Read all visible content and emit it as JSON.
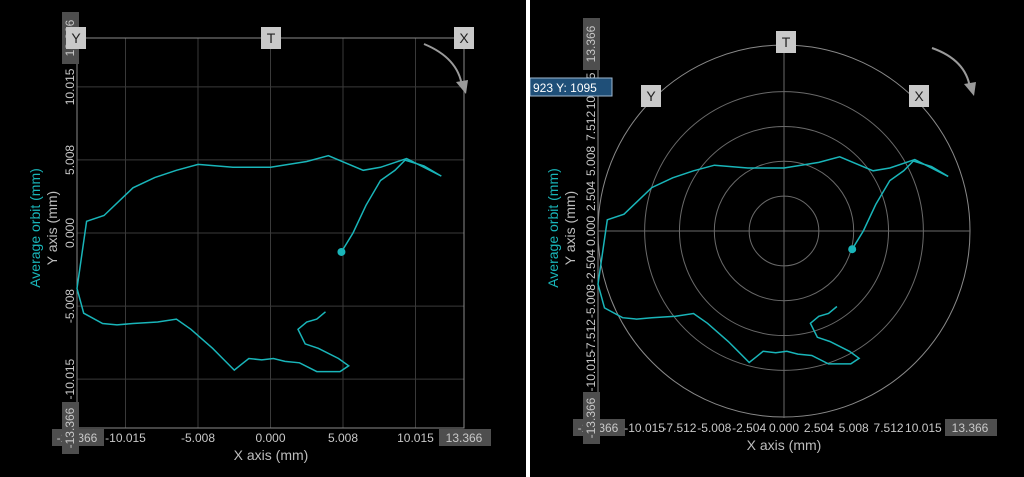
{
  "colors": {
    "trace": "#19b5b9",
    "grid": "#3a3a3a",
    "frame": "#8a8a8a",
    "tag_bg": "#c9c9c9",
    "tick_box_bg": "#4e4e4e",
    "cursor_bg": "#1f4f78"
  },
  "chart_data": [
    {
      "type": "line",
      "view": "cartesian-orbit",
      "xlabel": "X axis (mm)",
      "ylabel": "Y axis (mm)",
      "series_label": "Average orbit (mm)",
      "xlim": [
        -13.366,
        13.366
      ],
      "ylim": [
        -13.366,
        13.366
      ],
      "x_ticks": [
        "-13.366",
        "-10.015",
        "-5.008",
        "0.000",
        "5.008",
        "10.015",
        "13.366"
      ],
      "y_ticks": [
        "13.366",
        "10.015",
        "5.008",
        "0.000",
        "-5.008",
        "-10.015",
        "-13.366"
      ],
      "grid": true,
      "probe_tags": [
        "Y",
        "T",
        "X"
      ],
      "rotation_indicator": "clockwise-arrow",
      "series": [
        {
          "x": [
            4.9,
            5.7,
            6.6,
            7.6,
            8.6,
            9.3,
            10.6,
            11.8,
            9.4,
            7.6,
            6.4,
            4.0,
            2.5,
            0.0,
            -2.6,
            -5.0,
            -6.5,
            -8.0,
            -9.5,
            -11.5,
            -12.7,
            -13.366,
            -12.9,
            -11.6,
            -10.6,
            -9.5,
            -7.8,
            -6.5,
            -5.5,
            -4.0,
            -3.3,
            -2.5,
            -2.0,
            -1.5,
            -0.6,
            0.2,
            1.0,
            2.0,
            3.2,
            4.8,
            5.4,
            4.7,
            3.3,
            2.4,
            1.9,
            2.5,
            3.2,
            3.8
          ],
          "y": [
            -1.3,
            0.0,
            1.9,
            3.6,
            4.3,
            5.0,
            4.6,
            3.9,
            5.1,
            4.5,
            4.3,
            5.3,
            4.9,
            4.5,
            4.5,
            4.7,
            4.3,
            3.8,
            3.1,
            1.2,
            0.8,
            -3.8,
            -5.5,
            -6.2,
            -6.3,
            -6.2,
            -6.1,
            -5.9,
            -6.6,
            -7.9,
            -8.6,
            -9.4,
            -9.0,
            -8.6,
            -8.7,
            -8.6,
            -8.8,
            -8.9,
            -9.5,
            -9.5,
            -9.1,
            -8.6,
            -7.9,
            -7.6,
            -6.6,
            -6.1,
            -5.9,
            -5.4
          ]
        }
      ],
      "marker_point": [
        4.9,
        -1.3
      ]
    },
    {
      "type": "line",
      "view": "polar-orbit",
      "xlabel": "X axis (mm)",
      "ylabel": "Y axis (mm)",
      "series_label": "Average orbit (mm)",
      "xlim": [
        -13.366,
        13.366
      ],
      "ylim": [
        -13.366,
        13.366
      ],
      "x_ticks": [
        "-13.366",
        "-10.015",
        "-7.512",
        "-5.008",
        "-2.504",
        "0.000",
        "2.504",
        "5.008",
        "7.512",
        "10.015",
        "13.366"
      ],
      "y_ticks": [
        "13.366",
        "10.015",
        "7.512",
        "5.008",
        "2.504",
        "0.000",
        "-2.504",
        "-5.008",
        "-7.512",
        "-10.015",
        "-13.366"
      ],
      "grid": true,
      "probe_tags": [
        "T",
        "Y",
        "X"
      ],
      "rotation_indicator": "clockwise-arrow",
      "cursor_readout": "923 Y: 1095",
      "series": [
        {
          "x": [
            4.9,
            5.7,
            6.6,
            7.6,
            8.6,
            9.3,
            10.6,
            11.8,
            9.4,
            7.6,
            6.4,
            4.0,
            2.5,
            0.0,
            -2.6,
            -5.0,
            -6.5,
            -8.0,
            -9.5,
            -11.5,
            -12.7,
            -13.366,
            -12.9,
            -11.6,
            -10.6,
            -9.5,
            -7.8,
            -6.5,
            -5.5,
            -4.0,
            -3.3,
            -2.5,
            -2.0,
            -1.5,
            -0.6,
            0.2,
            1.0,
            2.0,
            3.2,
            4.8,
            5.4,
            4.7,
            3.3,
            2.4,
            1.9,
            2.5,
            3.2,
            3.8
          ],
          "y": [
            -1.3,
            0.0,
            1.9,
            3.6,
            4.3,
            5.0,
            4.6,
            3.9,
            5.1,
            4.5,
            4.3,
            5.3,
            4.9,
            4.5,
            4.5,
            4.7,
            4.3,
            3.8,
            3.1,
            1.2,
            0.8,
            -3.8,
            -5.5,
            -6.2,
            -6.3,
            -6.2,
            -6.1,
            -5.9,
            -6.6,
            -7.9,
            -8.6,
            -9.4,
            -9.0,
            -8.6,
            -8.7,
            -8.6,
            -8.8,
            -8.9,
            -9.5,
            -9.5,
            -9.1,
            -8.6,
            -7.9,
            -7.6,
            -6.6,
            -6.1,
            -5.9,
            -5.4
          ]
        }
      ],
      "marker_point": [
        4.9,
        -1.3
      ]
    }
  ]
}
